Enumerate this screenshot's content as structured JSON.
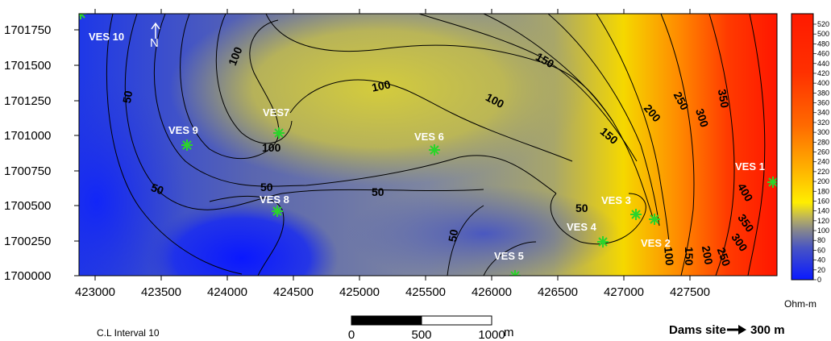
{
  "map": {
    "y_ticks": [
      "1701750",
      "1701500",
      "1701250",
      "1701000",
      "1700750",
      "1700500",
      "1700250",
      "1700000"
    ],
    "x_ticks": [
      "423000",
      "423500",
      "424000",
      "424500",
      "425000",
      "425500",
      "426000",
      "426500",
      "427000",
      "427500"
    ],
    "stations": [
      {
        "label": "VES 10",
        "marker": "asterisk"
      },
      {
        "label": "VES 9",
        "marker": "asterisk"
      },
      {
        "label": "VES7",
        "marker": "asterisk"
      },
      {
        "label": "VES 8",
        "marker": "asterisk"
      },
      {
        "label": "VES 6",
        "marker": "asterisk"
      },
      {
        "label": "VES 5",
        "marker": "asterisk"
      },
      {
        "label": "VES 4",
        "marker": "asterisk"
      },
      {
        "label": "VES 3",
        "marker": "asterisk"
      },
      {
        "label": "VES 2",
        "marker": "asterisk"
      },
      {
        "label": "VES 1",
        "marker": "asterisk"
      }
    ],
    "contour_labels": [
      "50",
      "100",
      "100",
      "150",
      "100",
      "100",
      "150",
      "200",
      "250",
      "300",
      "350",
      "50",
      "50",
      "50",
      "50",
      "50",
      "100",
      "150",
      "200",
      "250",
      "300",
      "350",
      "400"
    ],
    "north_arrow_label": "N"
  },
  "colorbar": {
    "ticks": [
      "520",
      "500",
      "480",
      "460",
      "440",
      "420",
      "400",
      "380",
      "360",
      "340",
      "320",
      "300",
      "280",
      "260",
      "240",
      "220",
      "200",
      "180",
      "160",
      "140",
      "120",
      "100",
      "80",
      "60",
      "40",
      "20",
      "0"
    ],
    "unit": "Ohm-m",
    "colors": {
      "low": "#0a1aff",
      "mid_low": "#6e78a6",
      "mid": "#a4a35a",
      "high_mid": "#ffe600",
      "high": "#ff1a00"
    }
  },
  "footer": {
    "contour_interval": "C.L Interval 10",
    "scale_labels": [
      "0",
      "500",
      "1000"
    ],
    "scale_unit": "m",
    "dams_text": "Dams site",
    "dams_distance": "300 m"
  },
  "colors": {
    "station_marker": "#2bd42b",
    "contour_line": "#000000"
  }
}
